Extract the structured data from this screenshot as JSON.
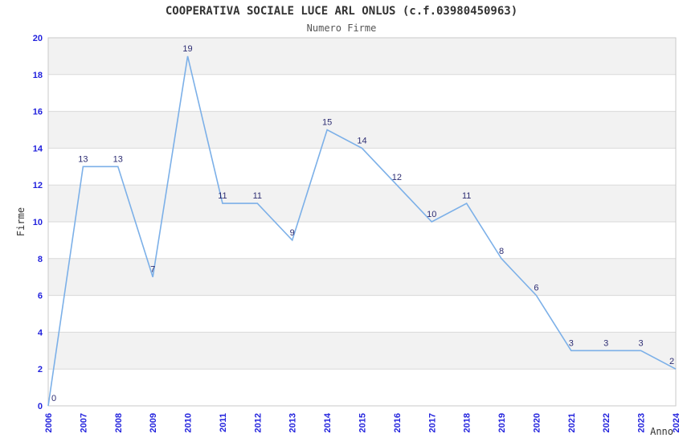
{
  "chart_data": {
    "type": "line",
    "title": "COOPERATIVA SOCIALE LUCE ARL ONLUS (c.f.03980450963)",
    "subtitle": "Numero Firme",
    "xlabel": "Anno",
    "ylabel": "Firme",
    "categories": [
      "2006",
      "2007",
      "2008",
      "2009",
      "2010",
      "2011",
      "2012",
      "2013",
      "2014",
      "2015",
      "2016",
      "2017",
      "2018",
      "2019",
      "2020",
      "2021",
      "2022",
      "2023",
      "2024"
    ],
    "values": [
      0,
      13,
      13,
      7,
      19,
      11,
      11,
      9,
      15,
      14,
      12,
      10,
      11,
      8,
      6,
      3,
      3,
      3,
      2
    ],
    "ylim": [
      0,
      20
    ],
    "ytick_step": 2,
    "yticks": [
      0,
      2,
      4,
      6,
      8,
      10,
      12,
      14,
      16,
      18,
      20
    ],
    "grid": "horizontal",
    "band_rows": "alternating gray bands every 2 units (2-4, 6-8, 10-12, 14-16, 18-20)",
    "legend": "none",
    "data_labels": true,
    "x_tick_rotation": -90,
    "colors": {
      "line": "#7cb0e8",
      "tick_label": "#2222dd",
      "data_label": "#2d2d73",
      "band": "#f2f2f2",
      "grid": "#d9d9d9",
      "border": "#c9c9c9",
      "title": "#333333",
      "subtitle": "#555555",
      "axis_label": "#333333",
      "background": "#ffffff"
    }
  }
}
